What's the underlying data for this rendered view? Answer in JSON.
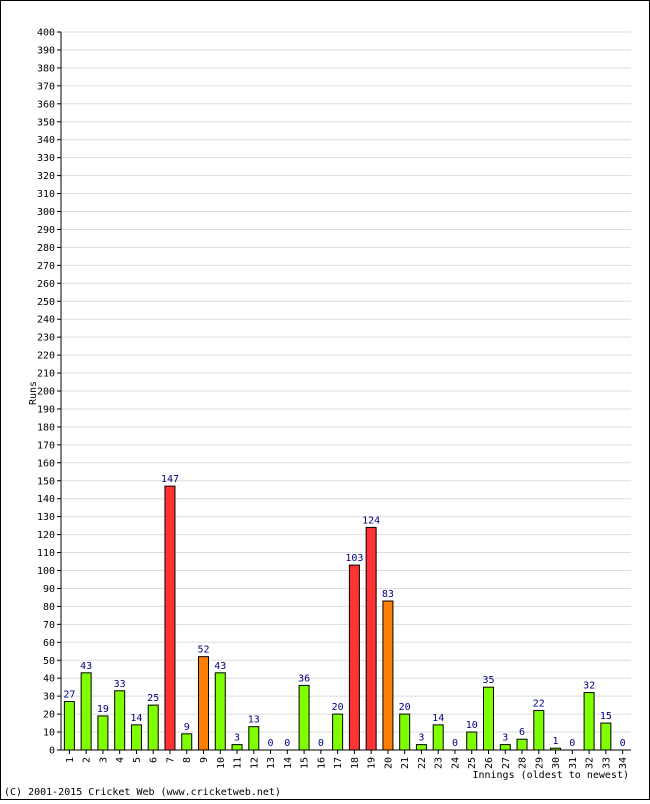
{
  "chart_data": {
    "type": "bar",
    "title": "",
    "xlabel": "Innings (oldest to newest)",
    "ylabel": "Runs",
    "ylim": [
      0,
      400
    ],
    "ystep": 10,
    "grid": true,
    "categories": [
      "1",
      "2",
      "3",
      "4",
      "5",
      "6",
      "7",
      "8",
      "9",
      "10",
      "11",
      "12",
      "13",
      "14",
      "15",
      "16",
      "17",
      "18",
      "19",
      "20",
      "21",
      "22",
      "23",
      "24",
      "25",
      "26",
      "27",
      "28",
      "29",
      "30",
      "31",
      "32",
      "33",
      "34"
    ],
    "values": [
      27,
      43,
      19,
      33,
      14,
      25,
      147,
      9,
      52,
      43,
      3,
      13,
      0,
      0,
      36,
      0,
      20,
      103,
      124,
      83,
      20,
      3,
      14,
      0,
      10,
      35,
      3,
      6,
      22,
      1,
      0,
      32,
      15,
      0
    ],
    "colors": {
      "under_50": "#80ff00",
      "fifty": "#ff8000",
      "hundred": "#ff3333",
      "outline": "#000000",
      "grid": "#dddddd",
      "data_label": "#000080"
    }
  },
  "footer": {
    "copyright": "(C) 2001-2015 Cricket Web (www.cricketweb.net)"
  }
}
